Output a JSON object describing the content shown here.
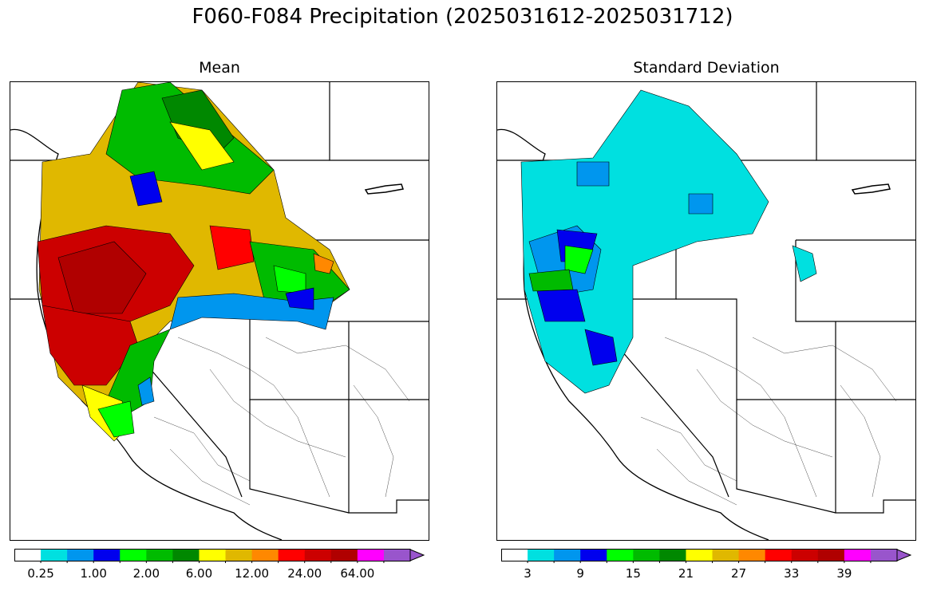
{
  "title": "F060-F084 Precipitation (2025031612-2025031712)",
  "panels": [
    {
      "title": "Mean",
      "colorbar": {
        "colors": [
          "#ffffff",
          "#00e0e0",
          "#0096ee",
          "#0000ee",
          "#00ff00",
          "#00bb00",
          "#008800",
          "#ffff00",
          "#e0b800",
          "#ff8800",
          "#ff0000",
          "#cc0000",
          "#b00000",
          "#ff00ff",
          "#9955cc"
        ],
        "tick_labels": [
          "0.25",
          "1.00",
          "2.00",
          "6.00",
          "12.00",
          "24.00",
          "64.00"
        ],
        "extend": "max"
      }
    },
    {
      "title": "Standard Deviation",
      "colorbar": {
        "colors": [
          "#ffffff",
          "#00e0e0",
          "#0096ee",
          "#0000ee",
          "#00ff00",
          "#00bb00",
          "#008800",
          "#ffff00",
          "#e0b800",
          "#ff8800",
          "#ff0000",
          "#cc0000",
          "#b00000",
          "#ff00ff",
          "#9955cc"
        ],
        "tick_labels": [
          "3",
          "9",
          "15",
          "21",
          "27",
          "33",
          "39"
        ],
        "extend": "max"
      }
    }
  ]
}
